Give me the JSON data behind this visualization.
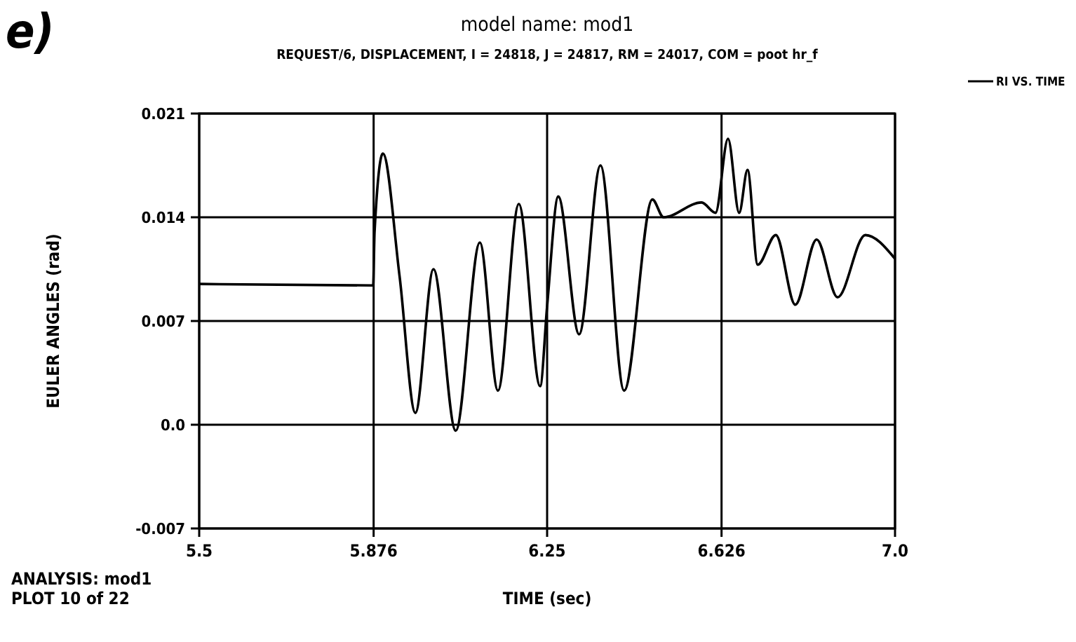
{
  "chart_data": {
    "type": "line",
    "title": "model name: mod1",
    "subtitle": "REQUEST/6, DISPLACEMENT, I = 24818, J = 24817, RM = 24017, COM = poot hr_f",
    "xlabel": "TIME (sec)",
    "ylabel": "EULER ANGLES (rad)",
    "annotations": [
      "e)",
      "ANALYSIS: mod1",
      "PLOT 10 of 22"
    ],
    "x": [
      5.5,
      5.875,
      5.878,
      5.896,
      5.932,
      5.966,
      6.005,
      6.053,
      6.105,
      6.144,
      6.189,
      6.235,
      6.25,
      6.274,
      6.319,
      6.365,
      6.416,
      6.477,
      6.501,
      6.583,
      6.613,
      6.64,
      6.664,
      6.682,
      6.704,
      6.743,
      6.785,
      6.831,
      6.876,
      6.936,
      7.0
    ],
    "series": [
      {
        "name": "RI VS. TIME",
        "color": "#000000",
        "values": [
          0.0095,
          0.0094,
          0.013,
          0.0183,
          0.01,
          0.0008,
          0.0105,
          -0.0004,
          0.0123,
          0.0023,
          0.0149,
          0.0026,
          0.008,
          0.0154,
          0.0061,
          0.0175,
          0.0023,
          0.0152,
          0.014,
          0.015,
          0.0143,
          0.0193,
          0.0143,
          0.0172,
          0.0108,
          0.0128,
          0.0081,
          0.0125,
          0.0086,
          0.0128,
          0.0112
        ]
      }
    ],
    "xlim": [
      5.5,
      7.0
    ],
    "xticks": [
      {
        "value": 5.5,
        "label": "5.5"
      },
      5.876,
      6.25,
      6.626,
      {
        "value": 7.0,
        "label": "7.0"
      }
    ],
    "ylim": [
      -0.007,
      0.021
    ],
    "yticks": [
      {
        "value": -0.007,
        "label": "-0.007"
      },
      {
        "value": 0,
        "label": "0.0"
      },
      0.007,
      0.014,
      0.021
    ],
    "grid": true,
    "legend": "top right",
    "marker": "none",
    "line_style": "solid"
  }
}
